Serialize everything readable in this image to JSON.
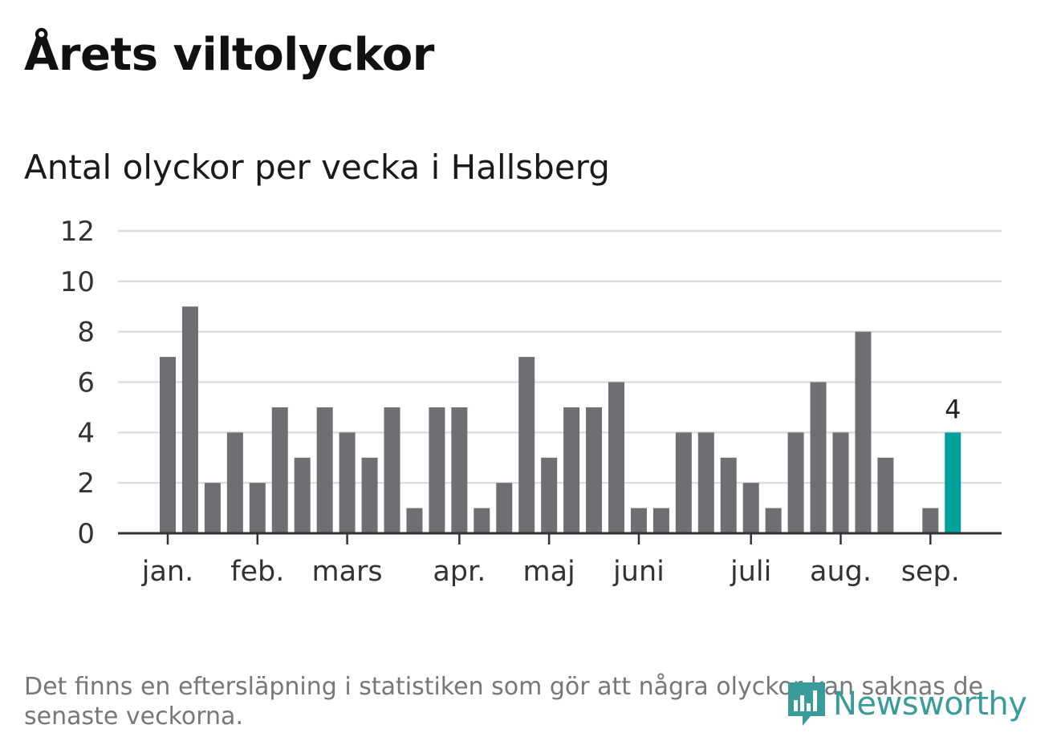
{
  "title": "Årets viltolyckor",
  "subtitle": "Antal olyckor per vecka i Hallsberg",
  "footnote": "Det finns en eftersläpning i statistiken som gör att några olyckor kan saknas de senaste veckorna.",
  "logo_text": "Newsworthy",
  "colors": {
    "bar": "#6e6e73",
    "highlight": "#00a19a",
    "grid": "#dddddd",
    "axis": "#333333",
    "logo": "#3a9c9a"
  },
  "chart_data": {
    "type": "bar",
    "values": [
      7,
      9,
      2,
      4,
      2,
      5,
      3,
      5,
      4,
      3,
      5,
      1,
      5,
      5,
      1,
      2,
      7,
      3,
      5,
      5,
      6,
      1,
      1,
      4,
      4,
      3,
      2,
      1,
      4,
      6,
      4,
      8,
      3,
      0,
      1,
      4
    ],
    "highlight_index": 35,
    "highlight_label": "4",
    "ylim": [
      0,
      12
    ],
    "yticks": [
      "0",
      "2",
      "4",
      "6",
      "8",
      "10",
      "12"
    ],
    "month_labels": [
      {
        "label": "jan.",
        "week": 1
      },
      {
        "label": "feb.",
        "week": 5
      },
      {
        "label": "mars",
        "week": 9
      },
      {
        "label": "apr.",
        "week": 14
      },
      {
        "label": "maj",
        "week": 18
      },
      {
        "label": "juni",
        "week": 22
      },
      {
        "label": "juli",
        "week": 27
      },
      {
        "label": "aug.",
        "week": 31
      },
      {
        "label": "sep.",
        "week": 35
      }
    ],
    "grid": true,
    "xlabel": "",
    "ylabel": ""
  }
}
